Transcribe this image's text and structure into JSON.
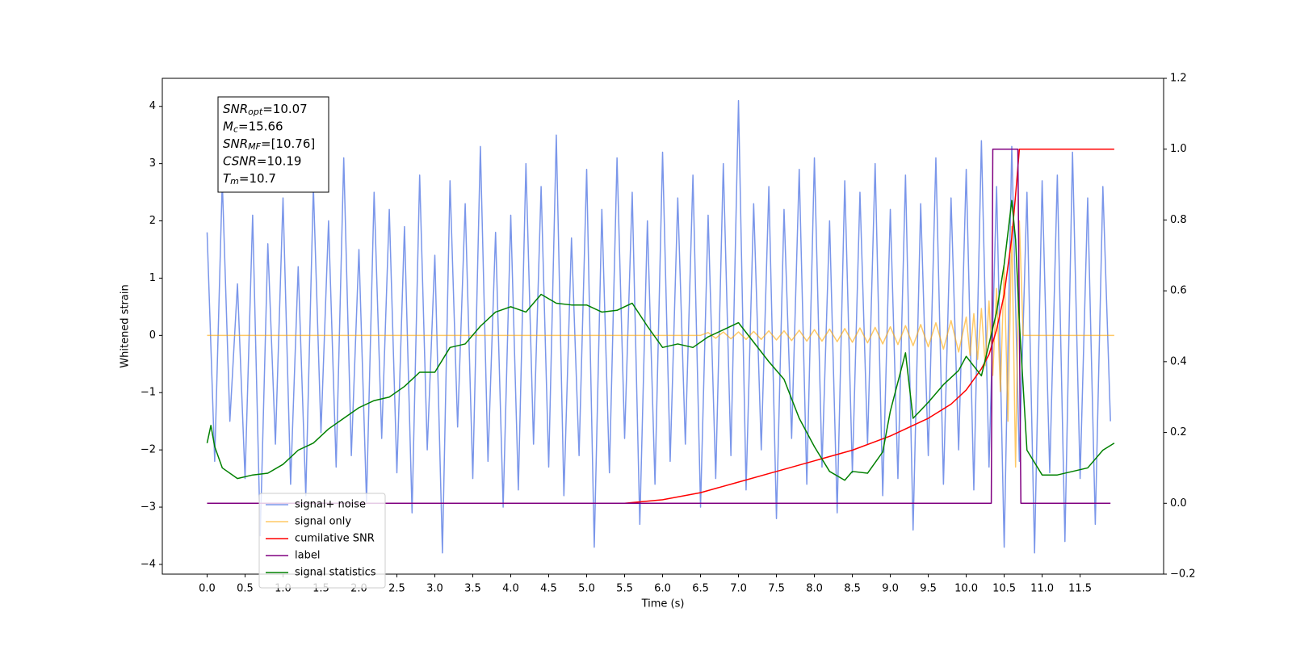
{
  "chart_data": {
    "type": "line",
    "xlabel": "Time (s)",
    "ylabel": "Whitened strain",
    "xlim": [
      -0.59,
      12.6
    ],
    "ylim": [
      -4.17,
      4.49
    ],
    "y2lim": [
      -0.2,
      1.2
    ],
    "xticks": [
      {
        "value": 0,
        "label": "0.0"
      },
      {
        "value": 0.5,
        "label": "0.5"
      },
      {
        "value": 1,
        "label": "1.0"
      },
      {
        "value": 1.5,
        "label": "1.5"
      },
      {
        "value": 2,
        "label": "2.0"
      },
      {
        "value": 2.5,
        "label": "2.5"
      },
      {
        "value": 3,
        "label": "3.0"
      },
      {
        "value": 3.5,
        "label": "3.5"
      },
      {
        "value": 4,
        "label": "4.0"
      },
      {
        "value": 4.5,
        "label": "4.5"
      },
      {
        "value": 5,
        "label": "5.0"
      },
      {
        "value": 5.5,
        "label": "5.5"
      },
      {
        "value": 6,
        "label": "6.0"
      },
      {
        "value": 6.5,
        "label": "6.5"
      },
      {
        "value": 7,
        "label": "7.0"
      },
      {
        "value": 7.5,
        "label": "7.5"
      },
      {
        "value": 8,
        "label": "8.0"
      },
      {
        "value": 8.5,
        "label": "8.5"
      },
      {
        "value": 9,
        "label": "9.0"
      },
      {
        "value": 9.5,
        "label": "9.5"
      },
      {
        "value": 10,
        "label": "10.0"
      },
      {
        "value": 10.5,
        "label": "10.5"
      },
      {
        "value": 11,
        "label": "11.0"
      },
      {
        "value": 11.5,
        "label": "11.5"
      }
    ],
    "yticks": [
      {
        "value": -4,
        "label": "−4"
      },
      {
        "value": -3,
        "label": "−3"
      },
      {
        "value": -2,
        "label": "−2"
      },
      {
        "value": -1,
        "label": "−1"
      },
      0,
      1,
      2,
      3,
      4
    ],
    "y2ticks": [
      {
        "value": -0.2,
        "label": "−0.2"
      },
      {
        "value": 0,
        "label": "0.0"
      },
      0.2,
      0.4,
      0.6,
      0.8,
      {
        "value": 1,
        "label": "1.0"
      },
      {
        "value": 1.2,
        "label": "1.2"
      }
    ],
    "legend": "lower left",
    "annotations": [
      {
        "symbol": "SNR",
        "subscript": "opt",
        "text": "=10.07"
      },
      {
        "symbol": "M",
        "subscript": "c",
        "text": "=15.66"
      },
      {
        "symbol": "SNR",
        "subscript": "MF",
        "text": "=[10.76]"
      },
      {
        "symbol": "CSNR",
        "text": "=10.19"
      },
      {
        "symbol": "T",
        "subscript": "m",
        "text": "=10.7"
      }
    ],
    "series": [
      {
        "name": "signal+ noise",
        "color": "#4169e1",
        "axis": "y",
        "x": [
          0.0,
          0.1,
          0.2,
          0.3,
          0.4,
          0.5,
          0.6,
          0.7,
          0.8,
          0.9,
          1.0,
          1.1,
          1.2,
          1.3,
          1.4,
          1.5,
          1.6,
          1.7,
          1.8,
          1.9,
          2.0,
          2.1,
          2.2,
          2.3,
          2.4,
          2.5,
          2.6,
          2.7,
          2.8,
          2.9,
          3.0,
          3.1,
          3.2,
          3.3,
          3.4,
          3.5,
          3.6,
          3.7,
          3.8,
          3.9,
          4.0,
          4.1,
          4.2,
          4.3,
          4.4,
          4.5,
          4.6,
          4.7,
          4.8,
          4.9,
          5.0,
          5.1,
          5.2,
          5.3,
          5.4,
          5.5,
          5.6,
          5.7,
          5.8,
          5.9,
          6.0,
          6.1,
          6.2,
          6.3,
          6.4,
          6.5,
          6.6,
          6.7,
          6.8,
          6.9,
          7.0,
          7.1,
          7.2,
          7.3,
          7.4,
          7.5,
          7.6,
          7.7,
          7.8,
          7.9,
          8.0,
          8.1,
          8.2,
          8.3,
          8.4,
          8.5,
          8.6,
          8.7,
          8.8,
          8.9,
          9.0,
          9.1,
          9.2,
          9.3,
          9.4,
          9.5,
          9.6,
          9.7,
          9.8,
          9.9,
          10.0,
          10.1,
          10.2,
          10.3,
          10.4,
          10.5,
          10.6,
          10.7,
          10.8,
          10.9,
          11.0,
          11.1,
          11.2,
          11.3,
          11.4,
          11.5,
          11.6,
          11.7,
          11.8,
          11.9
        ],
        "values": [
          1.8,
          -2.2,
          2.7,
          -1.5,
          0.9,
          -2.5,
          2.1,
          -3.5,
          1.6,
          -1.9,
          2.4,
          -2.6,
          1.2,
          -2.8,
          2.6,
          -1.7,
          2.0,
          -2.3,
          3.1,
          -2.1,
          1.5,
          -2.9,
          2.5,
          -1.8,
          2.2,
          -2.4,
          1.9,
          -3.1,
          2.8,
          -2.0,
          1.4,
          -3.8,
          2.7,
          -1.6,
          2.3,
          -2.5,
          3.3,
          -2.2,
          1.8,
          -3.0,
          2.1,
          -2.7,
          3.0,
          -1.9,
          2.6,
          -2.3,
          3.5,
          -2.8,
          1.7,
          -2.1,
          2.9,
          -3.7,
          2.2,
          -2.4,
          3.1,
          -1.8,
          2.5,
          -3.3,
          2.0,
          -2.6,
          3.2,
          -2.2,
          2.4,
          -1.9,
          2.8,
          -3.0,
          2.1,
          -2.5,
          3.0,
          -2.1,
          4.1,
          -2.7,
          2.3,
          -2.0,
          2.6,
          -3.2,
          2.2,
          -1.8,
          2.9,
          -2.6,
          3.1,
          -2.3,
          2.0,
          -3.1,
          2.7,
          -2.4,
          2.5,
          -1.9,
          3.0,
          -2.8,
          2.2,
          -2.5,
          2.8,
          -3.4,
          2.3,
          -2.1,
          3.1,
          -2.6,
          2.4,
          -2.0,
          2.9,
          -2.7,
          3.4,
          -2.3,
          2.6,
          -3.7,
          3.3,
          -2.2,
          2.5,
          -3.8,
          2.7,
          -2.4,
          2.8,
          -3.6,
          3.2,
          -2.5,
          2.4,
          -3.3,
          2.6,
          -1.5
        ]
      },
      {
        "name": "signal only",
        "color": "#ffa500",
        "axis": "y",
        "x": [
          0,
          6.5,
          6.6,
          6.7,
          6.8,
          6.9,
          7.0,
          7.1,
          7.2,
          7.3,
          7.4,
          7.5,
          7.6,
          7.7,
          7.8,
          7.9,
          8.0,
          8.1,
          8.2,
          8.3,
          8.4,
          8.5,
          8.6,
          8.7,
          8.8,
          8.9,
          9.0,
          9.1,
          9.2,
          9.3,
          9.4,
          9.5,
          9.6,
          9.7,
          9.8,
          9.9,
          10.0,
          10.05,
          10.1,
          10.15,
          10.2,
          10.25,
          10.3,
          10.35,
          10.4,
          10.45,
          10.5,
          10.55,
          10.6,
          10.65,
          10.7,
          10.75,
          11.95
        ],
        "values": [
          0,
          0,
          0.05,
          -0.05,
          0.06,
          -0.06,
          0.06,
          -0.07,
          0.07,
          -0.07,
          0.08,
          -0.08,
          0.08,
          -0.09,
          0.09,
          -0.1,
          0.1,
          -0.1,
          0.11,
          -0.11,
          0.12,
          -0.12,
          0.13,
          -0.13,
          0.14,
          -0.15,
          0.15,
          -0.16,
          0.17,
          -0.18,
          0.19,
          -0.2,
          0.22,
          -0.24,
          0.26,
          -0.29,
          0.32,
          -0.35,
          0.38,
          -0.42,
          0.47,
          -0.53,
          0.6,
          -0.7,
          0.82,
          -0.98,
          1.2,
          -1.5,
          1.9,
          -2.3,
          2.0,
          0,
          0
        ]
      },
      {
        "name": "cumilative SNR",
        "color": "#ff0000",
        "axis": "y2",
        "x": [
          0,
          5.5,
          6.0,
          6.5,
          7.0,
          7.5,
          8.0,
          8.5,
          9.0,
          9.5,
          9.8,
          10.0,
          10.2,
          10.3,
          10.4,
          10.5,
          10.6,
          10.65,
          10.7,
          11.95
        ],
        "values": [
          0,
          0,
          0.01,
          0.03,
          0.06,
          0.09,
          0.12,
          0.15,
          0.19,
          0.24,
          0.28,
          0.32,
          0.38,
          0.42,
          0.49,
          0.59,
          0.75,
          0.87,
          1.0,
          1.0
        ]
      },
      {
        "name": "label",
        "color": "#800080",
        "axis": "y2",
        "x": [
          0,
          10.33,
          10.35,
          10.68,
          10.72,
          11.9
        ],
        "values": [
          0,
          0,
          1,
          1,
          0,
          0
        ]
      },
      {
        "name": "signal statistics",
        "color": "#008000",
        "axis": "y2",
        "x": [
          0.0,
          0.05,
          0.1,
          0.2,
          0.4,
          0.6,
          0.8,
          1.0,
          1.2,
          1.4,
          1.6,
          1.8,
          2.0,
          2.2,
          2.4,
          2.6,
          2.8,
          3.0,
          3.2,
          3.4,
          3.6,
          3.8,
          4.0,
          4.2,
          4.4,
          4.6,
          4.8,
          5.0,
          5.2,
          5.4,
          5.6,
          5.8,
          6.0,
          6.2,
          6.4,
          6.6,
          6.8,
          7.0,
          7.2,
          7.4,
          7.6,
          7.8,
          8.0,
          8.2,
          8.4,
          8.5,
          8.7,
          8.9,
          9.0,
          9.2,
          9.3,
          9.5,
          9.7,
          9.9,
          10.0,
          10.2,
          10.4,
          10.5,
          10.6,
          10.65,
          10.7,
          10.8,
          11.0,
          11.2,
          11.4,
          11.6,
          11.8,
          11.95
        ],
        "values": [
          0.17,
          0.22,
          0.16,
          0.1,
          0.07,
          0.08,
          0.085,
          0.11,
          0.15,
          0.17,
          0.21,
          0.24,
          0.27,
          0.29,
          0.3,
          0.33,
          0.37,
          0.37,
          0.44,
          0.45,
          0.5,
          0.54,
          0.555,
          0.54,
          0.59,
          0.565,
          0.56,
          0.56,
          0.54,
          0.545,
          0.565,
          0.5,
          0.44,
          0.45,
          0.44,
          0.47,
          0.49,
          0.51,
          0.455,
          0.4,
          0.35,
          0.24,
          0.16,
          0.09,
          0.065,
          0.09,
          0.085,
          0.145,
          0.26,
          0.425,
          0.24,
          0.285,
          0.335,
          0.375,
          0.415,
          0.36,
          0.54,
          0.675,
          0.855,
          0.745,
          0.51,
          0.15,
          0.08,
          0.08,
          0.09,
          0.1,
          0.15,
          0.17
        ]
      }
    ]
  }
}
